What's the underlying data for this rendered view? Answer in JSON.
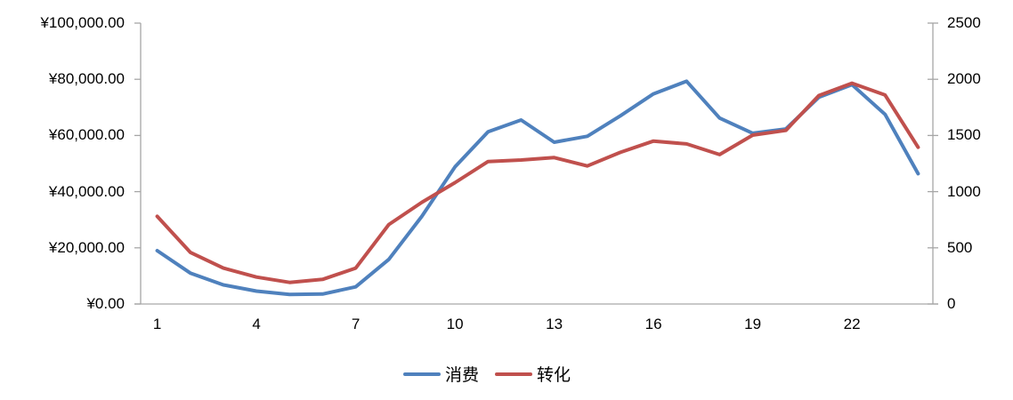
{
  "chart_data": {
    "type": "line",
    "title": "",
    "categories": [
      1,
      2,
      3,
      4,
      5,
      6,
      7,
      8,
      9,
      10,
      11,
      12,
      13,
      14,
      15,
      16,
      17,
      18,
      19,
      20,
      21,
      22,
      23,
      24
    ],
    "x_tick_labels": [
      "1",
      "4",
      "7",
      "10",
      "13",
      "16",
      "19",
      "22"
    ],
    "x_tick_positions": [
      1,
      4,
      7,
      10,
      13,
      16,
      19,
      22
    ],
    "series": [
      {
        "name": "消费",
        "axis": "left",
        "color": "#4F81BD",
        "values": [
          19000,
          11000,
          6800,
          4600,
          3400,
          3550,
          6100,
          15900,
          31200,
          48800,
          61300,
          65500,
          57600,
          59700,
          67000,
          74800,
          79300,
          66200,
          60800,
          62300,
          73600,
          78100,
          67500,
          46400
        ]
      },
      {
        "name": "转化",
        "axis": "right",
        "color": "#C0504D",
        "values": [
          780,
          460,
          320,
          240,
          192,
          219,
          320,
          707,
          905,
          1080,
          1268,
          1282,
          1303,
          1229,
          1350,
          1450,
          1425,
          1330,
          1503,
          1545,
          1855,
          1965,
          1860,
          1395
        ]
      }
    ],
    "y_left": {
      "min": 0,
      "max": 100000,
      "tick_labels": [
        "¥0.00",
        "¥20,000.00",
        "¥40,000.00",
        "¥60,000.00",
        "¥80,000.00",
        "¥100,000.00"
      ]
    },
    "y_right": {
      "min": 0,
      "max": 2500,
      "tick_labels": [
        "0",
        "500",
        "1000",
        "1500",
        "2000",
        "2500"
      ]
    },
    "legend_position": "bottom",
    "gridlines": false
  },
  "legend": {
    "series_1": "消费",
    "series_2": "转化"
  },
  "colors": {
    "series_1": "#4F81BD",
    "series_2": "#C0504D",
    "axis": "#A6A6A6",
    "text": "#000000",
    "background": "#FFFFFF"
  }
}
